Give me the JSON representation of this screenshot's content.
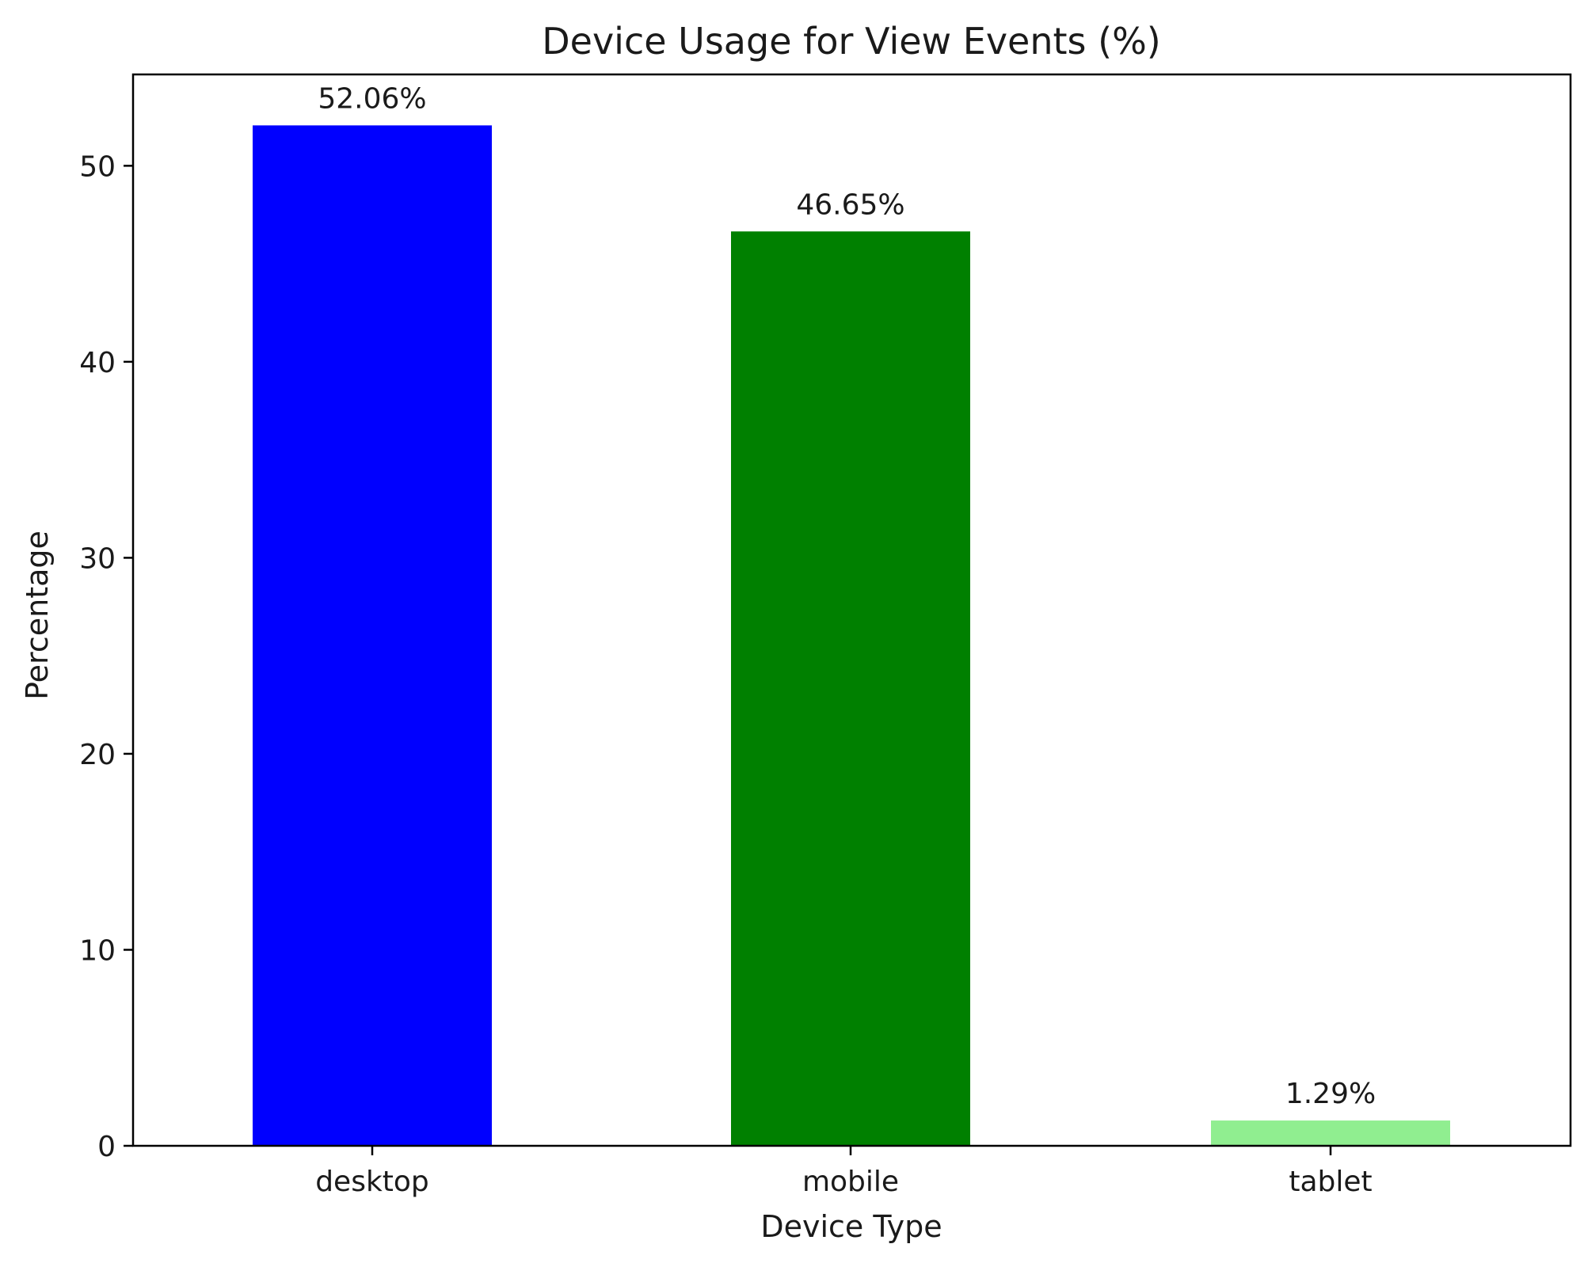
{
  "chart_data": {
    "type": "bar",
    "title": "Device Usage for View Events (%)",
    "xlabel": "Device Type",
    "ylabel": "Percentage",
    "categories": [
      "desktop",
      "mobile",
      "tablet"
    ],
    "values": [
      52.06,
      46.65,
      1.29
    ],
    "data_labels": [
      "52.06%",
      "46.65%",
      "1.29%"
    ],
    "colors": [
      "#0000ff",
      "#008000",
      "#90ee90"
    ],
    "ylim": [
      0,
      54.66
    ],
    "yticks": [
      0,
      10,
      20,
      30,
      40,
      50
    ],
    "grid": false,
    "legend": "none"
  }
}
